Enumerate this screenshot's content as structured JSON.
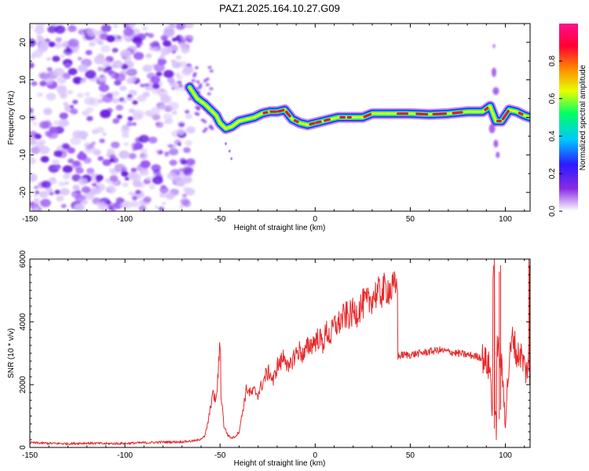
{
  "title": "PAZ1.2025.164.10.27.G09",
  "colors": {
    "snr_line": "#e8282a",
    "signal_core": "#e8282a",
    "noise": "#8a2be2"
  },
  "chart_data": [
    {
      "type": "heatmap",
      "xlabel": "Height of straight line (km)",
      "ylabel": "Frequency (Hz)",
      "xlim": [
        -150,
        113
      ],
      "ylim": [
        -25,
        25
      ],
      "x_ticks": [
        -150,
        -100,
        -50,
        0,
        50,
        100
      ],
      "y_ticks": [
        -20,
        -10,
        0,
        10,
        20
      ],
      "grid": false,
      "colorbar": {
        "label": "Normalized spectral amplitude",
        "range": [
          0,
          1
        ],
        "ticks": [
          0.0,
          0.2,
          0.4,
          0.6,
          0.8
        ],
        "colormap": [
          "#ffffff",
          "#8a2be2",
          "#2b1aff",
          "#00c8ff",
          "#00ff66",
          "#e8ff00",
          "#ff8800",
          "#ff0033",
          "#ff1090"
        ]
      },
      "ridge": {
        "x": [
          -66,
          -62,
          -58,
          -55,
          -52,
          -50,
          -47,
          -44,
          -40,
          -36,
          -32,
          -28,
          -24,
          -20,
          -16,
          -12,
          -8,
          -4,
          0,
          4,
          8,
          12,
          16,
          20,
          25,
          30,
          40,
          50,
          60,
          70,
          80,
          88,
          92,
          95,
          98,
          102,
          106,
          110,
          113
        ],
        "freq": [
          8,
          5,
          3.5,
          2,
          0.5,
          -1.5,
          -3,
          -2.5,
          -1,
          -0.5,
          0,
          1,
          1.5,
          1.5,
          2,
          -0.5,
          -1.5,
          -2,
          -1.5,
          -1,
          -0.5,
          0,
          0,
          0,
          0,
          1,
          1,
          1,
          0.8,
          1,
          1.5,
          1.5,
          3,
          -1,
          -1,
          2,
          1.5,
          0.5,
          0
        ]
      },
      "noise_region_x": [
        -150,
        -65
      ]
    },
    {
      "type": "line",
      "xlabel": "Height of straight line (km)",
      "ylabel": "SNR (10 * v/v)",
      "xlim": [
        -150,
        113
      ],
      "ylim": [
        0,
        6000
      ],
      "x_ticks": [
        -150,
        -100,
        -50,
        0,
        50,
        100
      ],
      "y_ticks": [
        0,
        2000,
        4000,
        6000
      ],
      "grid": false,
      "series": [
        {
          "x": [
            -150,
            -140,
            -130,
            -120,
            -110,
            -100,
            -90,
            -80,
            -70,
            -62,
            -58,
            -56,
            -54,
            -52,
            -50,
            -49,
            -48,
            -46,
            -44,
            -42,
            -40,
            -38,
            -36,
            -34,
            -32,
            -30,
            -28,
            -26,
            -24,
            -22,
            -20,
            -18,
            -16,
            -14,
            -12,
            -10,
            -8,
            -6,
            -4,
            -2,
            0,
            2,
            4,
            6,
            8,
            10,
            12,
            14,
            16,
            18,
            20,
            22,
            24,
            26,
            28,
            30,
            32,
            34,
            36,
            38,
            40,
            42,
            43,
            44,
            46,
            50,
            55,
            60,
            65,
            70,
            75,
            80,
            85,
            88,
            90,
            92,
            93,
            94,
            95,
            96,
            97,
            98,
            100,
            102,
            104,
            106,
            108,
            110,
            111,
            112,
            113
          ],
          "values": [
            150,
            130,
            120,
            140,
            120,
            130,
            150,
            170,
            180,
            220,
            350,
            900,
            1700,
            1500,
            3300,
            1500,
            700,
            400,
            300,
            350,
            500,
            1200,
            1900,
            1700,
            1800,
            1700,
            2000,
            2300,
            2400,
            2100,
            2600,
            2700,
            3000,
            2400,
            2800,
            3000,
            3100,
            2900,
            3200,
            3300,
            3400,
            3500,
            3300,
            3700,
            3500,
            3900,
            3900,
            4100,
            4200,
            4200,
            4300,
            4300,
            4500,
            4600,
            4600,
            4800,
            4900,
            4900,
            5000,
            5100,
            5000,
            5100,
            5100,
            2900,
            2950,
            2950,
            3000,
            3050,
            3100,
            3050,
            3000,
            2950,
            2900,
            2850,
            2700,
            2500,
            1200,
            5800,
            700,
            3200,
            3000,
            2500,
            1000,
            2700,
            3600,
            2900,
            3000,
            2600,
            2400,
            2800,
            3000
          ]
        }
      ]
    }
  ]
}
